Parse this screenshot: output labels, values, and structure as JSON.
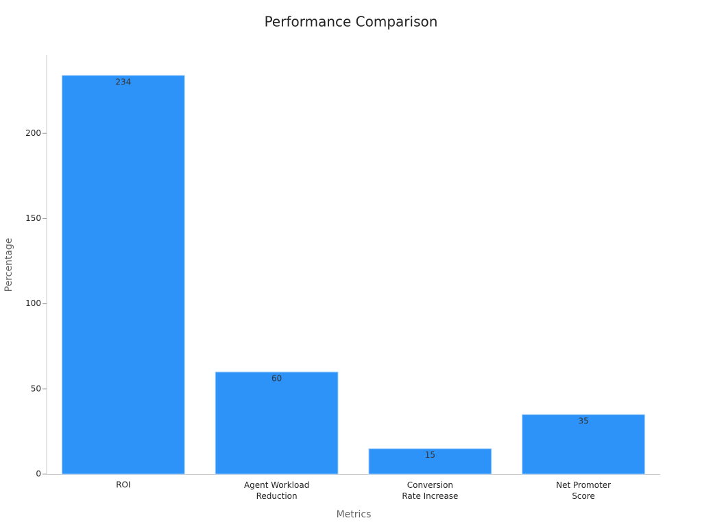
{
  "chart_data": {
    "type": "bar",
    "title": "Performance Comparison",
    "x_label": "Metrics",
    "y_label": "Percentage",
    "categories": [
      "ROI",
      "Agent Workload\nReduction",
      "Conversion\nRate Increase",
      "Net Promoter\nScore"
    ],
    "values": [
      234,
      60,
      15,
      35
    ],
    "color": "#2e93f8",
    "ylim": [
      0,
      246
    ],
    "yticks": [
      0,
      50,
      100,
      150,
      200
    ],
    "grid": false
  }
}
